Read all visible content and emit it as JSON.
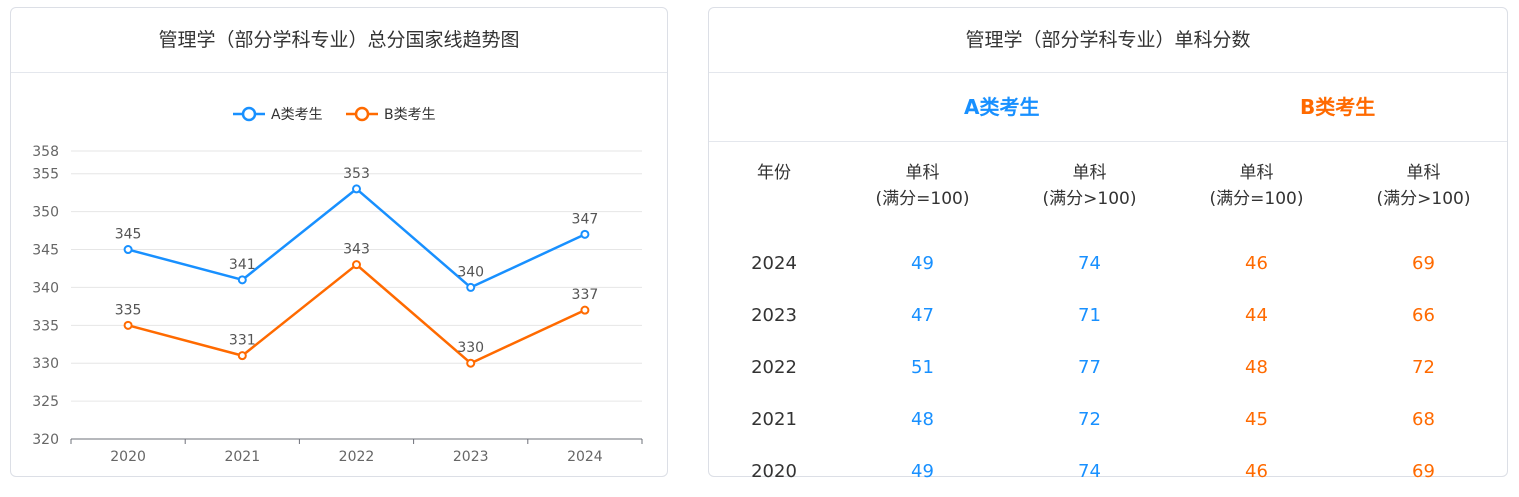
{
  "left_panel": {
    "title": "管理学（部分学科专业）总分国家线趋势图"
  },
  "chart_data": {
    "type": "line",
    "x": [
      "2020",
      "2021",
      "2022",
      "2023",
      "2024"
    ],
    "series": [
      {
        "name": "A类考生",
        "color": "#1890ff",
        "values": [
          345,
          341,
          353,
          340,
          347
        ]
      },
      {
        "name": "B类考生",
        "color": "#ff6a00",
        "values": [
          335,
          331,
          343,
          330,
          337
        ]
      }
    ],
    "yticks": [
      320,
      325,
      330,
      335,
      340,
      345,
      350,
      355,
      358
    ],
    "ylim": [
      320,
      358
    ],
    "grid": true,
    "legend": "top-center",
    "show_data_labels": true
  },
  "right_panel": {
    "title": "管理学（部分学科专业）单科分数",
    "type_a_label": "A类考生",
    "type_b_label": "B类考生",
    "headers": {
      "year": "年份",
      "single": "单科",
      "full_100": "(满分=100)",
      "full_over_100": "(满分>100)"
    },
    "rows": [
      {
        "year": "2024",
        "a_100": "49",
        "a_over": "74",
        "b_100": "46",
        "b_over": "69"
      },
      {
        "year": "2023",
        "a_100": "47",
        "a_over": "71",
        "b_100": "44",
        "b_over": "66"
      },
      {
        "year": "2022",
        "a_100": "51",
        "a_over": "77",
        "b_100": "48",
        "b_over": "72"
      },
      {
        "year": "2021",
        "a_100": "48",
        "a_over": "72",
        "b_100": "45",
        "b_over": "68"
      },
      {
        "year": "2020",
        "a_100": "49",
        "a_over": "74",
        "b_100": "46",
        "b_over": "69"
      }
    ]
  }
}
